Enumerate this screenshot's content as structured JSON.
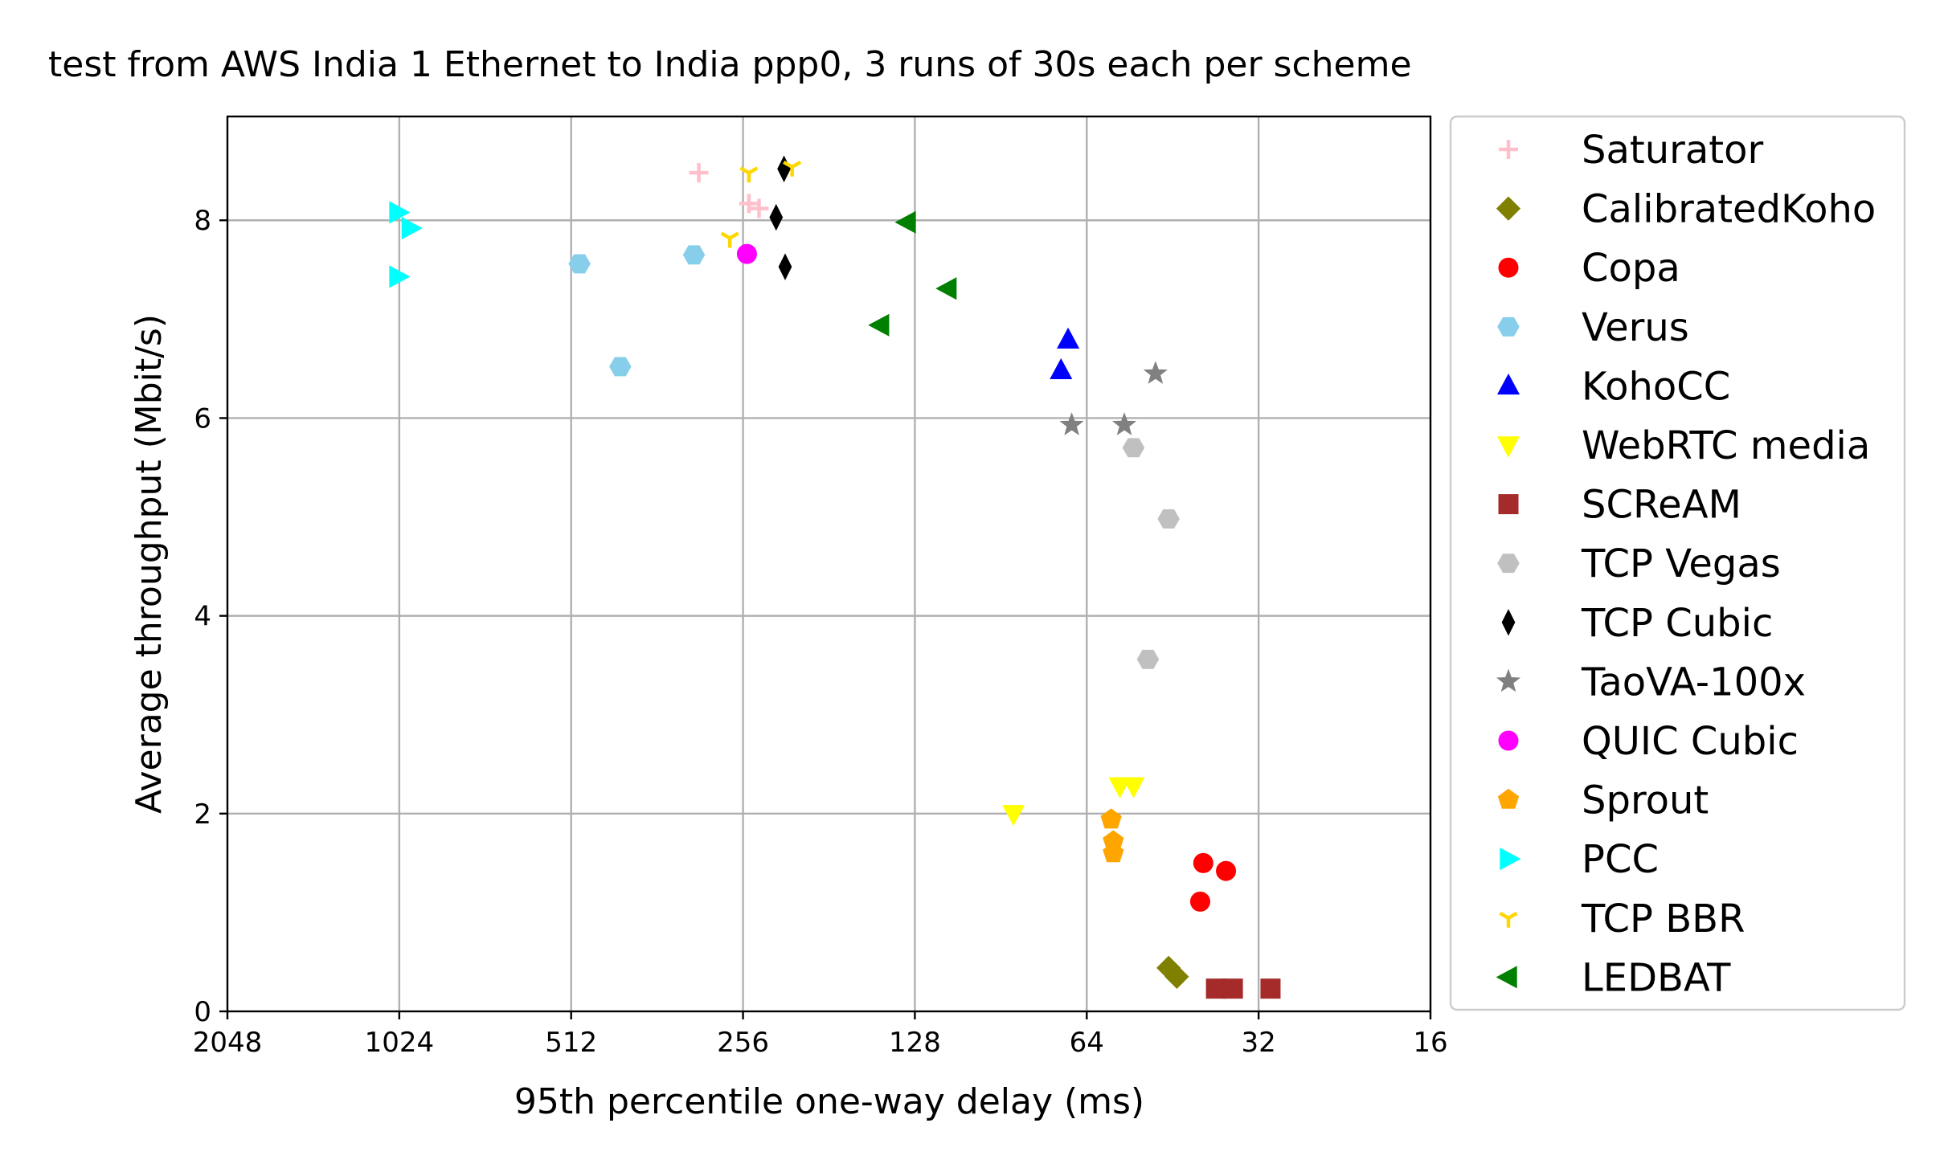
{
  "chart_data": {
    "type": "scatter",
    "title": "test from AWS India 1 Ethernet to India ppp0, 3 runs of 30s each per scheme",
    "xlabel": "95th percentile one-way delay (ms)",
    "ylabel": "Average throughput (Mbit/s)",
    "xscale": "log2",
    "x_inverted": true,
    "xlim": [
      2048,
      16
    ],
    "ylim": [
      0,
      9.05
    ],
    "x_ticks": [
      2048,
      1024,
      512,
      256,
      128,
      64,
      32,
      16
    ],
    "x_tick_labels": [
      "2048",
      "1024",
      "512",
      "256",
      "128",
      "64",
      "32",
      "16"
    ],
    "y_ticks": [
      0,
      2,
      4,
      6,
      8
    ],
    "y_tick_labels": [
      "0",
      "2",
      "4",
      "6",
      "8"
    ],
    "grid": true,
    "legend_position": "outside-right",
    "series": [
      {
        "name": "Saturator",
        "marker": "plus",
        "color": "#ffc0cb",
        "points": [
          [
            306,
            8.48
          ],
          [
            250,
            8.17
          ],
          [
            240,
            8.12
          ]
        ]
      },
      {
        "name": "CalibratedKoho",
        "marker": "diamond",
        "color": "#808000",
        "points": [
          [
            46,
            0.44
          ],
          [
            44.5,
            0.35
          ]
        ]
      },
      {
        "name": "Copa",
        "marker": "circle",
        "color": "#ff0000",
        "points": [
          [
            40,
            1.5
          ],
          [
            36.5,
            1.42
          ],
          [
            40.5,
            1.11
          ]
        ]
      },
      {
        "name": "Verus",
        "marker": "hexagon",
        "color": "#87ceeb",
        "points": [
          [
            495,
            7.56
          ],
          [
            312,
            7.65
          ],
          [
            420,
            6.52
          ]
        ]
      },
      {
        "name": "KohoCC",
        "marker": "triangle-up",
        "color": "#0000ff",
        "points": [
          [
            69,
            6.79
          ],
          [
            71,
            6.48
          ]
        ]
      },
      {
        "name": "WebRTC media",
        "marker": "triangle-down",
        "color": "#ffff00",
        "points": [
          [
            86,
            2.0
          ],
          [
            56,
            2.28
          ],
          [
            53,
            2.28
          ]
        ]
      },
      {
        "name": "SCReAM",
        "marker": "square",
        "color": "#a52a2a",
        "points": [
          [
            38,
            0.23
          ],
          [
            35.5,
            0.23
          ],
          [
            30.5,
            0.23
          ]
        ]
      },
      {
        "name": "TCP Vegas",
        "marker": "hexagon",
        "color": "#c0c0c0",
        "points": [
          [
            53,
            5.7
          ],
          [
            46,
            4.98
          ],
          [
            50,
            3.56
          ]
        ]
      },
      {
        "name": "TCP Cubic",
        "marker": "thin-diamond",
        "color": "#000000",
        "points": [
          [
            217,
            8.52
          ],
          [
            224,
            8.03
          ],
          [
            216,
            7.53
          ]
        ]
      },
      {
        "name": "TaoVA-100x",
        "marker": "star",
        "color": "#808080",
        "points": [
          [
            48.5,
            6.45
          ],
          [
            68,
            5.93
          ],
          [
            55,
            5.93
          ]
        ]
      },
      {
        "name": "QUIC Cubic",
        "marker": "circle",
        "color": "#ff00ff",
        "points": [
          [
            252,
            7.66
          ]
        ]
      },
      {
        "name": "Sprout",
        "marker": "pentagon",
        "color": "#ffa500",
        "points": [
          [
            58,
            1.94
          ],
          [
            57.5,
            1.72
          ],
          [
            57.5,
            1.6
          ]
        ]
      },
      {
        "name": "PCC",
        "marker": "triangle-right",
        "color": "#00ffff",
        "points": [
          [
            1030,
            8.08
          ],
          [
            980,
            7.92
          ],
          [
            1030,
            7.43
          ]
        ]
      },
      {
        "name": "TCP BBR",
        "marker": "tri-down",
        "color": "#ffd700",
        "points": [
          [
            250,
            8.48
          ],
          [
            210,
            8.54
          ],
          [
            270,
            7.82
          ]
        ]
      },
      {
        "name": "LEDBAT",
        "marker": "triangle-left",
        "color": "#008000",
        "points": [
          [
            132,
            7.98
          ],
          [
            112,
            7.31
          ],
          [
            147,
            6.94
          ]
        ]
      }
    ]
  }
}
